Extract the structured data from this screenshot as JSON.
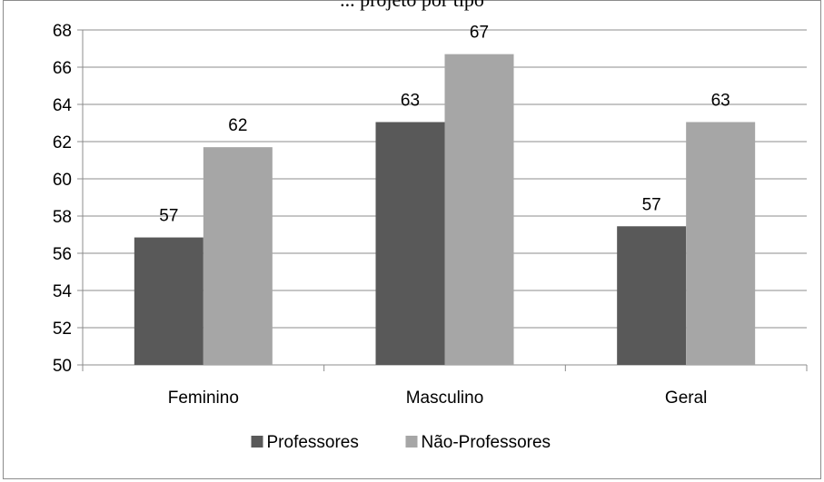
{
  "chart_data": {
    "type": "bar",
    "title": "... projeto por tipo",
    "categories": [
      "Feminino",
      "Masculino",
      "Geral"
    ],
    "series": [
      {
        "name": "Professores",
        "color": "#595959",
        "values": [
          56.85,
          63.05,
          57.45
        ],
        "labels": [
          "57",
          "63",
          "57"
        ]
      },
      {
        "name": "Não-Professores",
        "color": "#a6a6a6",
        "values": [
          61.7,
          66.7,
          63.05
        ],
        "labels": [
          "62",
          "67",
          "63"
        ]
      }
    ],
    "ylim": [
      50,
      68
    ],
    "yticks": [
      50,
      52,
      54,
      56,
      58,
      60,
      62,
      64,
      66,
      68
    ],
    "grid": true,
    "legend": "bottom"
  }
}
